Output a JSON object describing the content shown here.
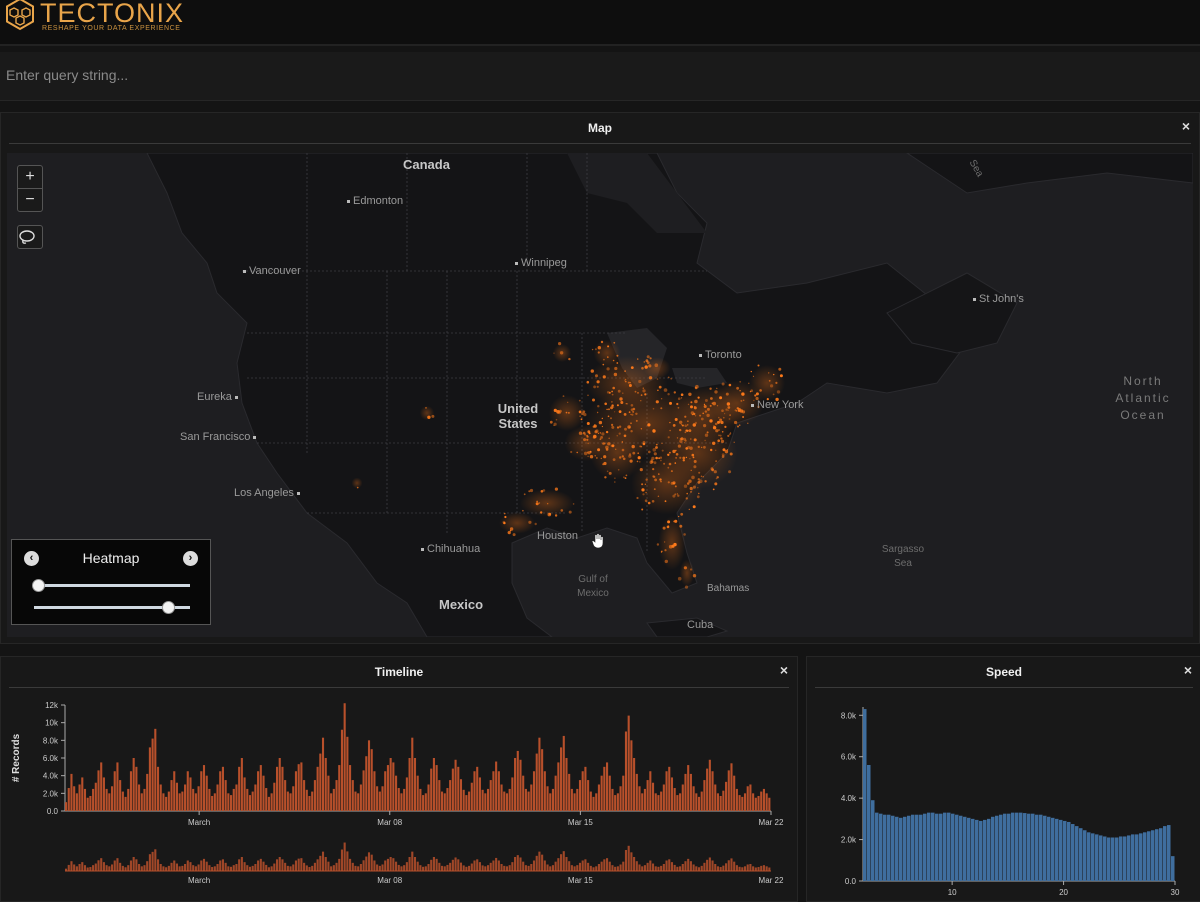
{
  "app": {
    "name": "TECTONIX",
    "tagline": "RESHAPE YOUR DATA EXPERIENCE",
    "brand_color": "#e9a54a"
  },
  "query": {
    "placeholder": "Enter query string..."
  },
  "map_panel": {
    "title": "Map",
    "close_icon": "×",
    "zoom_in": "+",
    "zoom_out": "−",
    "lasso_icon": "lasso-icon",
    "labels": {
      "canada": "Canada",
      "edmonton": "Edmonton",
      "vancouver": "Vancouver",
      "winnipeg": "Winnipeg",
      "st_johns": "St John's",
      "toronto": "Toronto",
      "new_york": "New York",
      "united_states": "United States",
      "eureka": "Eureka",
      "san_francisco": "San Francisco",
      "los_angeles": "Los Angeles",
      "houston": "Houston",
      "chihuahua": "Chihuahua",
      "mexico": "Mexico",
      "gulf_of_mexico": "Gulf of Mexico",
      "bahamas": "Bahamas",
      "cuba": "Cuba",
      "sargasso_sea": "Sargasso Sea",
      "north_atlantic": "North Atlantic Ocean",
      "sea": "Sea"
    },
    "heatmap": {
      "title": "Heatmap",
      "prev_icon": "chevron-left-icon",
      "next_icon": "chevron-right-icon",
      "slider1_value": 0.02,
      "slider2_value": 0.85
    },
    "heat_color": "#ff7a1a"
  },
  "timeline_panel": {
    "title": "Timeline",
    "close_icon": "×",
    "chart_data": {
      "type": "bar",
      "ylabel": "# Records",
      "ylim": [
        0,
        12000
      ],
      "yticks": [
        "0.0",
        "2.0k",
        "4.0k",
        "6.0k",
        "8.0k",
        "10k",
        "12k"
      ],
      "xticks": [
        "March",
        "Mar 08",
        "Mar 15",
        "Mar 22"
      ],
      "bar_color": "#b8502b",
      "values": [
        1000,
        2600,
        4200,
        2800,
        2000,
        3000,
        3800,
        2500,
        1500,
        1700,
        2500,
        3200,
        4600,
        5500,
        3800,
        2500,
        2000,
        2800,
        4500,
        5500,
        3500,
        2200,
        1600,
        2500,
        4500,
        6000,
        5000,
        3000,
        2000,
        2500,
        4200,
        7200,
        8200,
        9300,
        5000,
        3000,
        2000,
        1600,
        2200,
        3500,
        4500,
        3200,
        2000,
        2200,
        3000,
        4500,
        3800,
        2500,
        2000,
        2800,
        4500,
        5200,
        4000,
        2500,
        1700,
        2000,
        3000,
        4500,
        5000,
        3500,
        2000,
        1800,
        2500,
        3000,
        5000,
        6000,
        3800,
        2500,
        1800,
        2200,
        3000,
        4500,
        5200,
        4000,
        2600,
        1600,
        2000,
        3200,
        5000,
        6000,
        5000,
        3500,
        2200,
        2000,
        2800,
        4500,
        5300,
        5500,
        3500,
        2400,
        1700,
        2200,
        3500,
        5000,
        6500,
        8300,
        6000,
        4000,
        2000,
        2500,
        3500,
        5200,
        9200,
        12200,
        8400,
        5200,
        3500,
        2200,
        2000,
        3000,
        4600,
        6200,
        8000,
        7000,
        4500,
        2800,
        2200,
        2800,
        4500,
        5200,
        6000,
        5500,
        4000,
        2600,
        2000,
        2500,
        3800,
        6000,
        8300,
        6000,
        4000,
        2500,
        1800,
        2000,
        3000,
        4800,
        6000,
        5200,
        3500,
        2200,
        2000,
        2600,
        3500,
        4800,
        5800,
        5000,
        3600,
        2400,
        1800,
        2200,
        3200,
        4500,
        5000,
        3800,
        2400,
        2000,
        2500,
        3500,
        4500,
        5600,
        4500,
        3000,
        2200,
        2000,
        2500,
        3800,
        6000,
        6800,
        5800,
        4000,
        2500,
        2200,
        3000,
        4500,
        6500,
        8300,
        7000,
        4500,
        2800,
        2000,
        2500,
        4000,
        5500,
        7200,
        8500,
        6000,
        4200,
        2500,
        2000,
        2500,
        3500,
        4500,
        5000,
        3500,
        2200,
        1600,
        2000,
        3000,
        4000,
        5000,
        5500,
        4000,
        2500,
        1800,
        2000,
        2800,
        4000,
        9000,
        10800,
        8000,
        6000,
        4200,
        2800,
        2000,
        2500,
        3500,
        4500,
        3200,
        2000,
        1800,
        2200,
        3000,
        4500,
        5000,
        3800,
        2600,
        1800,
        2000,
        3000,
        4200,
        5200,
        4200,
        2800,
        2000,
        1600,
        2200,
        3500,
        4800,
        5800,
        4500,
        3000,
        2000,
        1700,
        2300,
        3300,
        4600,
        5400,
        4000,
        2500,
        1800,
        1600,
        2000,
        2800,
        3000,
        2000,
        1500,
        1700,
        2200,
        2500,
        2000,
        1500
      ]
    },
    "overview_xticks": [
      "March",
      "Mar 08",
      "Mar 15",
      "Mar 22"
    ]
  },
  "speed_panel": {
    "title": "Speed",
    "close_icon": "×",
    "chart_data": {
      "type": "bar",
      "xlim": [
        2,
        30
      ],
      "ylim": [
        0,
        8400
      ],
      "yticks": [
        "0.0",
        "2.0k",
        "4.0k",
        "6.0k",
        "8.0k"
      ],
      "xticks": [
        "10",
        "20",
        "30"
      ],
      "bar_color": "#3f6e9e",
      "values": [
        8300,
        5600,
        3900,
        3300,
        3250,
        3200,
        3200,
        3150,
        3100,
        3050,
        3100,
        3150,
        3200,
        3200,
        3200,
        3250,
        3300,
        3300,
        3250,
        3250,
        3300,
        3300,
        3250,
        3200,
        3150,
        3100,
        3050,
        3000,
        2950,
        2900,
        2950,
        3000,
        3100,
        3150,
        3200,
        3250,
        3250,
        3300,
        3300,
        3300,
        3280,
        3250,
        3250,
        3200,
        3200,
        3150,
        3100,
        3050,
        3000,
        2950,
        2900,
        2850,
        2750,
        2650,
        2550,
        2450,
        2350,
        2300,
        2250,
        2200,
        2150,
        2100,
        2100,
        2100,
        2150,
        2150,
        2200,
        2250,
        2250,
        2300,
        2350,
        2400,
        2450,
        2500,
        2550,
        2650,
        2700,
        1200
      ]
    }
  }
}
